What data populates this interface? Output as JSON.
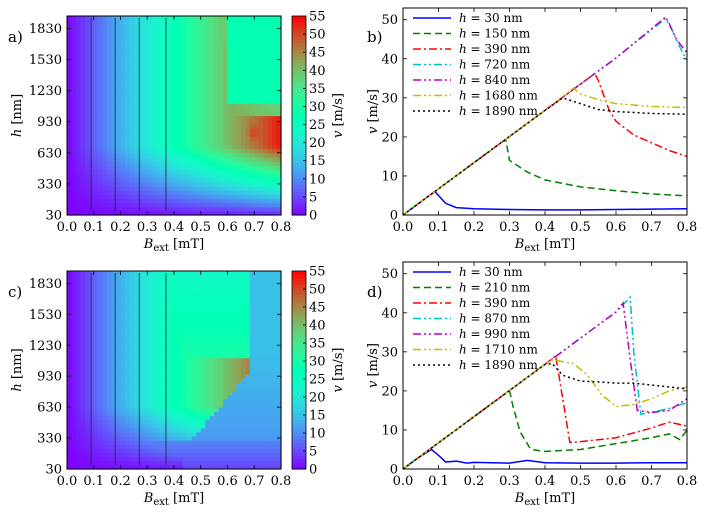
{
  "chart_data": [
    {
      "id": "a",
      "panel_label": "a)",
      "type": "heatmap",
      "xlabel_main": "B",
      "xlabel_sub": "ext",
      "xlabel_unit": "[mT]",
      "ylabel": "h",
      "ylabel_unit": "[nm]",
      "colorbar_label": "v [m/s]",
      "x_ticks": [
        "0.0",
        "0.1",
        "0.2",
        "0.3",
        "0.4",
        "0.5",
        "0.6",
        "0.7",
        "0.8"
      ],
      "y_ticks": [
        "30",
        "330",
        "630",
        "930",
        "1230",
        "1530",
        "1830"
      ],
      "colorbar_ticks": [
        "0",
        "5",
        "10",
        "15",
        "20",
        "25",
        "30",
        "35",
        "40",
        "45",
        "50",
        "55"
      ],
      "xlim": [
        0,
        0.8
      ],
      "ylim": [
        30,
        1950
      ],
      "vlim": [
        0,
        55
      ]
    },
    {
      "id": "b",
      "panel_label": "b)",
      "type": "line",
      "xlabel_main": "B",
      "xlabel_sub": "ext",
      "xlabel_unit": "[mT]",
      "ylabel": "v [m/s]",
      "x_ticks": [
        "0.0",
        "0.1",
        "0.2",
        "0.3",
        "0.4",
        "0.5",
        "0.6",
        "0.7",
        "0.8"
      ],
      "y_ticks": [
        "0",
        "10",
        "20",
        "30",
        "40",
        "50"
      ],
      "xlim": [
        0,
        0.8
      ],
      "ylim": [
        0,
        53
      ],
      "series": [
        {
          "name": "h = 30 nm",
          "color": "#0000ff",
          "dash": "none",
          "x": [
            0,
            0.05,
            0.09,
            0.1,
            0.12,
            0.15,
            0.2,
            0.3,
            0.4,
            0.5,
            0.6,
            0.7,
            0.8
          ],
          "y": [
            0,
            3.4,
            6.0,
            5.0,
            3.0,
            1.9,
            1.6,
            1.4,
            1.3,
            1.3,
            1.4,
            1.5,
            1.6
          ]
        },
        {
          "name": "h = 150 nm",
          "color": "#008000",
          "dash": "7 4",
          "x": [
            0,
            0.1,
            0.2,
            0.28,
            0.29,
            0.3,
            0.35,
            0.4,
            0.5,
            0.6,
            0.7,
            0.8
          ],
          "y": [
            0,
            6.7,
            13.4,
            18.8,
            19.0,
            14.0,
            11.0,
            9.0,
            7.2,
            6.2,
            5.4,
            4.9
          ]
        },
        {
          "name": "h = 390 nm",
          "color": "#ff0000",
          "dash": "8 3 2 3",
          "x": [
            0,
            0.1,
            0.2,
            0.3,
            0.4,
            0.5,
            0.54,
            0.55,
            0.58,
            0.6,
            0.65,
            0.7,
            0.75,
            0.8
          ],
          "y": [
            0,
            6.7,
            13.4,
            20.1,
            26.8,
            33.5,
            36.2,
            34.5,
            27.0,
            24.0,
            20.5,
            18.5,
            16.5,
            15.0
          ]
        },
        {
          "name": "h = 720 nm",
          "color": "#00bfbf",
          "dash": "8 3 2 3 2 3",
          "x": [
            0,
            0.2,
            0.4,
            0.6,
            0.74,
            0.76,
            0.78,
            0.8
          ],
          "y": [
            0,
            13.4,
            26.8,
            40.2,
            50.3,
            47.0,
            43.0,
            39.5
          ]
        },
        {
          "name": "h = 840 nm",
          "color": "#bf00bf",
          "dash": "8 3 2 3 2 3",
          "x": [
            0,
            0.2,
            0.4,
            0.6,
            0.74,
            0.75,
            0.77,
            0.8
          ],
          "y": [
            0,
            13.4,
            26.8,
            40.2,
            50.7,
            49.0,
            45.0,
            41.5
          ]
        },
        {
          "name": "h = 1680 nm",
          "color": "#bfbf00",
          "dash": "8 3 2 3 2 3",
          "x": [
            0,
            0.2,
            0.4,
            0.48,
            0.5,
            0.55,
            0.6,
            0.7,
            0.8
          ],
          "y": [
            0,
            13.4,
            26.8,
            32.5,
            31.0,
            29.5,
            28.5,
            27.8,
            27.5
          ]
        },
        {
          "name": "h = 1890 nm",
          "color": "#000000",
          "dash": "2 3",
          "x": [
            0,
            0.2,
            0.4,
            0.45,
            0.5,
            0.55,
            0.6,
            0.7,
            0.8
          ],
          "y": [
            0,
            13.4,
            26.8,
            30.0,
            28.5,
            27.0,
            26.5,
            26.0,
            25.8
          ]
        }
      ]
    },
    {
      "id": "c",
      "panel_label": "c)",
      "type": "heatmap",
      "xlabel_main": "B",
      "xlabel_sub": "ext",
      "xlabel_unit": "[mT]",
      "ylabel": "h",
      "ylabel_unit": "[nm]",
      "colorbar_label": "v [m/s]",
      "x_ticks": [
        "0.0",
        "0.1",
        "0.2",
        "0.3",
        "0.4",
        "0.5",
        "0.6",
        "0.7",
        "0.8"
      ],
      "y_ticks": [
        "30",
        "330",
        "630",
        "930",
        "1230",
        "1530",
        "1830"
      ],
      "colorbar_ticks": [
        "0",
        "5",
        "10",
        "15",
        "20",
        "25",
        "30",
        "35",
        "40",
        "45",
        "50",
        "55"
      ],
      "xlim": [
        0,
        0.8
      ],
      "ylim": [
        30,
        1950
      ],
      "vlim": [
        0,
        55
      ]
    },
    {
      "id": "d",
      "panel_label": "d)",
      "type": "line",
      "xlabel_main": "B",
      "xlabel_sub": "ext",
      "xlabel_unit": "[mT]",
      "ylabel": "v [m/s]",
      "x_ticks": [
        "0.0",
        "0.1",
        "0.2",
        "0.3",
        "0.4",
        "0.5",
        "0.6",
        "0.7",
        "0.8"
      ],
      "y_ticks": [
        "0",
        "10",
        "20",
        "30",
        "40",
        "50"
      ],
      "xlim": [
        0,
        0.8
      ],
      "ylim": [
        0,
        53
      ],
      "series": [
        {
          "name": "h = 30 nm",
          "color": "#0000ff",
          "dash": "none",
          "x": [
            0,
            0.04,
            0.08,
            0.1,
            0.12,
            0.15,
            0.18,
            0.2,
            0.3,
            0.35,
            0.4,
            0.5,
            0.6,
            0.7,
            0.8
          ],
          "y": [
            0,
            2.7,
            5.0,
            3.5,
            1.8,
            2.0,
            1.5,
            1.7,
            1.5,
            2.2,
            1.6,
            1.5,
            1.5,
            1.6,
            1.6
          ]
        },
        {
          "name": "h = 210 nm",
          "color": "#008000",
          "dash": "7 4",
          "x": [
            0,
            0.1,
            0.2,
            0.3,
            0.31,
            0.33,
            0.36,
            0.4,
            0.5,
            0.6,
            0.7,
            0.75,
            0.78,
            0.8
          ],
          "y": [
            0,
            6.7,
            13.4,
            20.1,
            16.0,
            9.5,
            5.0,
            4.5,
            5.0,
            6.5,
            8.0,
            9.0,
            7.5,
            10.0
          ]
        },
        {
          "name": "h = 390 nm",
          "color": "#ff0000",
          "dash": "8 3 2 3",
          "x": [
            0,
            0.1,
            0.2,
            0.3,
            0.4,
            0.43,
            0.45,
            0.47,
            0.5,
            0.6,
            0.7,
            0.75,
            0.8
          ],
          "y": [
            0,
            6.7,
            13.4,
            20.1,
            26.8,
            29.0,
            18.0,
            6.8,
            7.0,
            8.0,
            10.5,
            12.0,
            11.0
          ]
        },
        {
          "name": "h = 870 nm",
          "color": "#00bfbf",
          "dash": "8 3 2 3 2 3",
          "x": [
            0,
            0.2,
            0.4,
            0.6,
            0.64,
            0.65,
            0.67,
            0.7,
            0.75,
            0.8
          ],
          "y": [
            0,
            13.4,
            26.8,
            40.2,
            44.0,
            30.0,
            14.0,
            14.5,
            15.5,
            17.0
          ]
        },
        {
          "name": "h = 990 nm",
          "color": "#bf00bf",
          "dash": "8 3 2 3 2 3",
          "x": [
            0,
            0.2,
            0.4,
            0.6,
            0.62,
            0.64,
            0.66,
            0.7,
            0.75,
            0.8
          ],
          "y": [
            0,
            13.4,
            26.8,
            40.2,
            42.5,
            28.0,
            15.0,
            14.5,
            15.0,
            18.0
          ]
        },
        {
          "name": "h = 1710 nm",
          "color": "#bfbf00",
          "dash": "8 3 2 3 2 3",
          "x": [
            0,
            0.2,
            0.4,
            0.42,
            0.45,
            0.48,
            0.52,
            0.56,
            0.6,
            0.65,
            0.7,
            0.75,
            0.8
          ],
          "y": [
            0,
            13.4,
            26.8,
            28.0,
            27.5,
            27.0,
            24.0,
            19.0,
            16.0,
            16.5,
            18.0,
            20.0,
            21.0
          ]
        },
        {
          "name": "h = 1890 nm",
          "color": "#000000",
          "dash": "2 3",
          "x": [
            0,
            0.2,
            0.4,
            0.42,
            0.45,
            0.5,
            0.55,
            0.6,
            0.65,
            0.7,
            0.75,
            0.8
          ],
          "y": [
            0,
            13.4,
            26.8,
            27.0,
            24.0,
            22.5,
            22.3,
            22.0,
            22.0,
            21.5,
            21.0,
            20.5
          ]
        }
      ]
    }
  ]
}
